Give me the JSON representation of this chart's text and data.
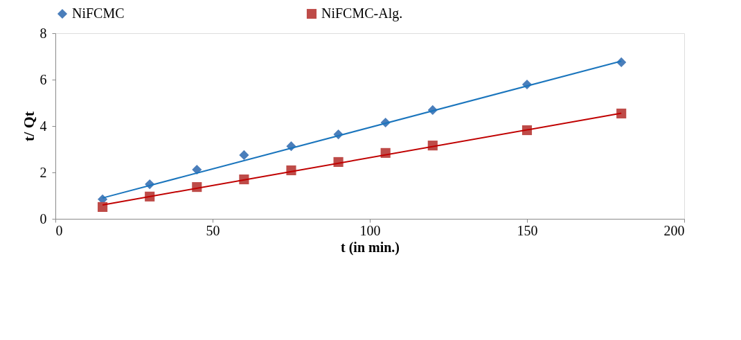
{
  "chart_data": {
    "type": "scatter",
    "xlabel": "t (in min.)",
    "ylabel": "t/ Qt",
    "xlim": [
      0,
      200
    ],
    "xticks": [
      0,
      50,
      100,
      150,
      200
    ],
    "ylim": [
      0,
      8
    ],
    "yticks": [
      0,
      2,
      4,
      6,
      8
    ],
    "grid": false,
    "legend": "top",
    "series": [
      {
        "name": "NiFCMC",
        "color": "#4a7ebb",
        "marker": "diamond",
        "x": [
          15,
          30,
          45,
          60,
          75,
          90,
          105,
          120,
          150,
          180
        ],
        "values": [
          0.84,
          1.49,
          2.12,
          2.75,
          3.13,
          3.64,
          4.15,
          4.69,
          5.79,
          6.75
        ]
      },
      {
        "name": "NiFCMC-Alg.",
        "color": "#be4b48",
        "marker": "square",
        "x": [
          15,
          30,
          45,
          60,
          75,
          90,
          105,
          120,
          150,
          180
        ],
        "values": [
          0.51,
          0.96,
          1.37,
          1.7,
          2.09,
          2.45,
          2.84,
          3.16,
          3.82,
          4.54
        ]
      },
      {
        "type": "line",
        "color": "#1a75bd",
        "x": [
          15,
          180
        ],
        "values": [
          0.9,
          6.8
        ]
      },
      {
        "type": "line",
        "color": "#c00000",
        "x": [
          15,
          180
        ],
        "values": [
          0.6,
          4.55
        ]
      }
    ]
  }
}
